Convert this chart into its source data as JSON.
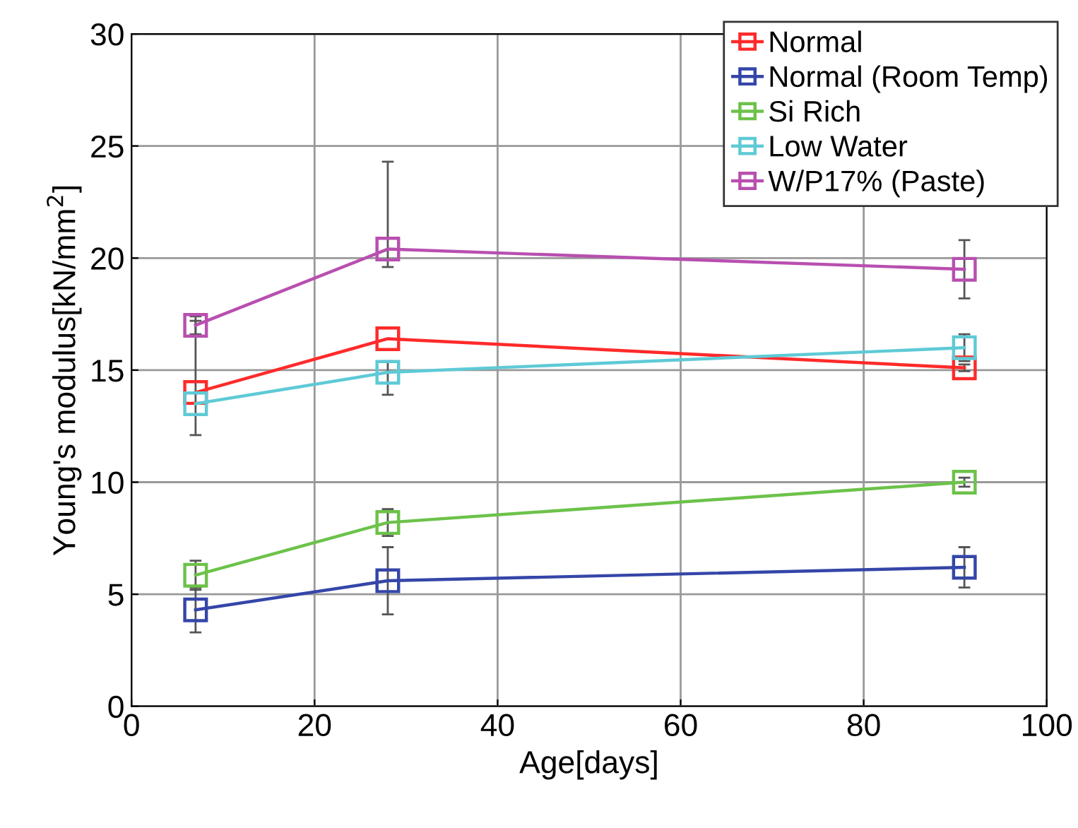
{
  "chart_data": {
    "type": "line",
    "xlabel": "Age[days]",
    "ylabel": "Young's modulus[kN/mm$^{2}$]",
    "x": [
      7,
      28,
      91
    ],
    "series": [
      {
        "name": "Normal",
        "color": "#ff2a2a",
        "values": [
          14.0,
          16.4,
          15.1
        ],
        "errors": [
          [
            12.1,
            17.2
          ],
          null,
          0.15
        ]
      },
      {
        "name": "Normal (Room Temp)",
        "color": "#3546a8",
        "values": [
          4.3,
          5.6,
          6.2
        ],
        "errors": [
          1.0,
          1.5,
          0.9
        ]
      },
      {
        "name": "Si Rich",
        "color": "#6cc24a",
        "values": [
          5.85,
          8.2,
          10.0
        ],
        "errors": [
          0.65,
          0.6,
          0.2
        ]
      },
      {
        "name": "Low Water",
        "color": "#5ecad6",
        "values": [
          13.5,
          14.9,
          16.0
        ],
        "errors": [
          null,
          [
            13.9,
            15.4
          ],
          0.6
        ]
      },
      {
        "name": "W/P17% (Paste)",
        "color": "#b84fb0",
        "values": [
          17.0,
          20.4,
          19.5
        ],
        "errors": [
          0.4,
          [
            19.6,
            24.3
          ],
          1.3
        ]
      }
    ],
    "xlim": [
      0,
      100
    ],
    "ylim": [
      0,
      30
    ],
    "xticks": [
      0,
      20,
      40,
      60,
      80,
      100
    ],
    "yticks": [
      0,
      5,
      10,
      15,
      20,
      25,
      30
    ],
    "grid": true,
    "legend": "top right",
    "marker": "square",
    "line_style": "solid"
  }
}
